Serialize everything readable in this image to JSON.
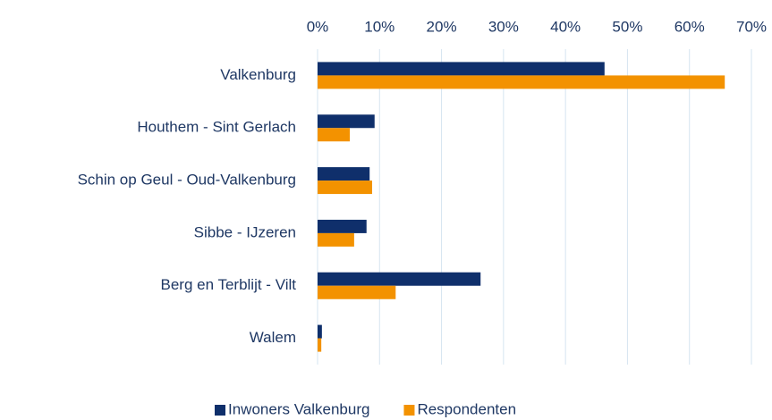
{
  "chart_data": {
    "type": "hbar",
    "categories": [
      "Valkenburg",
      "Houthem - Sint Gerlach",
      "Schin op Geul - Oud-Valkenburg",
      "Sibbe - IJzeren",
      "Berg en Terblijt - Vilt",
      "Walem"
    ],
    "series": [
      {
        "name": "Inwoners Valkenburg",
        "color": "#0f2f6b",
        "values": [
          46.3,
          9.2,
          8.4,
          7.9,
          26.3,
          0.7
        ]
      },
      {
        "name": "Respondenten",
        "color": "#f39200",
        "values": [
          65.7,
          5.2,
          8.8,
          5.9,
          12.6,
          0.6
        ]
      }
    ],
    "xlim": [
      0,
      70
    ],
    "xticks": [
      {
        "value": 0,
        "label": "0%"
      },
      {
        "value": 10,
        "label": "10%"
      },
      {
        "value": 20,
        "label": "20%"
      },
      {
        "value": 30,
        "label": "30%"
      },
      {
        "value": 40,
        "label": "40%"
      },
      {
        "value": 50,
        "label": "50%"
      },
      {
        "value": 60,
        "label": "60%"
      },
      {
        "value": 70,
        "label": "70%"
      }
    ],
    "grid": true,
    "legend": "bottom"
  }
}
